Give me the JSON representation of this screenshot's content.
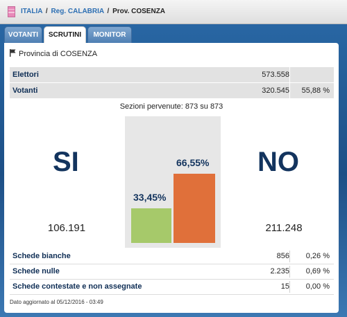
{
  "breadcrumb": {
    "italia": "ITALIA",
    "sep1": "/",
    "region": "Reg. CALABRIA",
    "sep2": "/",
    "province": "Prov. COSENZA"
  },
  "tabs": [
    {
      "label": "VOTANTI",
      "active": false
    },
    {
      "label": "SCRUTINI",
      "active": true
    },
    {
      "label": "MONITOR",
      "active": false
    }
  ],
  "province_title": "Provincia di COSENZA",
  "summary": {
    "elettori_label": "Elettori",
    "elettori_value": "573.558",
    "votanti_label": "Votanti",
    "votanti_value": "320.545",
    "votanti_pct": "55,88 %"
  },
  "sezioni": "Sezioni pervenute: 873 su 873",
  "result": {
    "si_label": "SI",
    "si_votes": "106.191",
    "si_pct_label": "33,45%",
    "no_label": "NO",
    "no_votes": "211.248",
    "no_pct_label": "66,55%"
  },
  "chart_data": {
    "type": "bar",
    "categories": [
      "SI",
      "NO"
    ],
    "values": [
      33.45,
      66.55
    ],
    "ylim": [
      0,
      100
    ],
    "colors": [
      "#a6c96a",
      "#e0703a"
    ]
  },
  "schede": [
    {
      "label": "Schede bianche",
      "value": "856",
      "pct": "0,26 %"
    },
    {
      "label": "Schede nulle",
      "value": "2.235",
      "pct": "0,69 %"
    },
    {
      "label": "Schede contestate e non assegnate",
      "value": "15",
      "pct": "0,00 %"
    }
  ],
  "updated": "Dato aggiornato al 05/12/2016 - 03:49"
}
